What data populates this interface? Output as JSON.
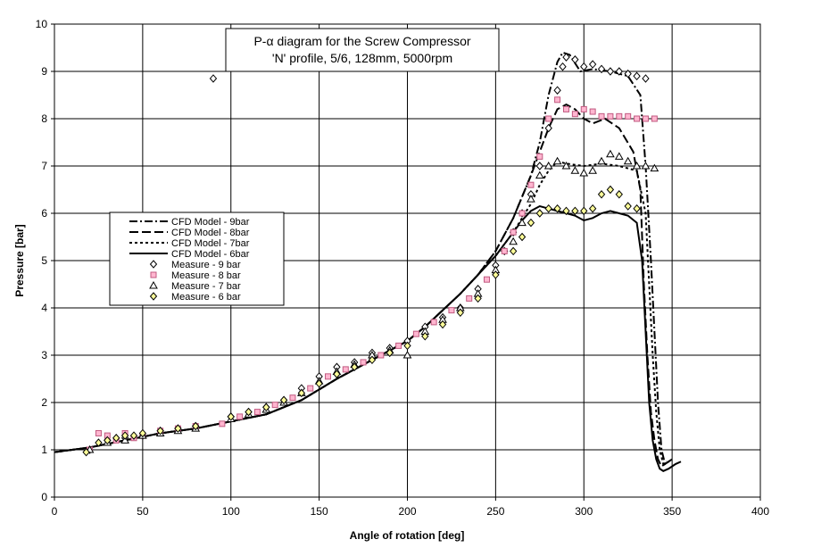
{
  "chart_data": {
    "type": "line",
    "title": [
      "P-α diagram for the Screw Compressor",
      "'N' profile, 5/6, 128mm, 5000rpm"
    ],
    "xlabel": "Angle of rotation [deg]",
    "ylabel": "Pressure [bar]",
    "xlim": [
      0,
      400
    ],
    "ylim": [
      0,
      10
    ],
    "xticks": [
      "0",
      "50",
      "100",
      "150",
      "200",
      "250",
      "300",
      "350",
      "400"
    ],
    "yticks": [
      "0",
      "1",
      "2",
      "3",
      "4",
      "5",
      "6",
      "7",
      "8",
      "9",
      "10"
    ],
    "grid": true,
    "legend_position": "middle-left",
    "series": [
      {
        "name": "CFD Model - 9bar",
        "style": "dashdot",
        "color": "#000000",
        "x": [
          0,
          10,
          20,
          40,
          60,
          80,
          100,
          120,
          140,
          160,
          180,
          200,
          210,
          220,
          230,
          240,
          250,
          260,
          270,
          275,
          280,
          285,
          288,
          292,
          298,
          305,
          315,
          325,
          332,
          335,
          338,
          340,
          342,
          344,
          346,
          348,
          350
        ],
        "y": [
          0.95,
          1.0,
          1.05,
          1.2,
          1.35,
          1.45,
          1.6,
          1.75,
          2.05,
          2.5,
          2.9,
          3.3,
          3.6,
          3.95,
          4.3,
          4.7,
          5.2,
          5.9,
          6.8,
          7.5,
          8.5,
          9.2,
          9.4,
          9.35,
          9.0,
          9.05,
          9.0,
          8.9,
          8.5,
          7.0,
          5.0,
          3.5,
          2.0,
          1.0,
          0.7,
          0.75,
          0.8
        ]
      },
      {
        "name": "CFD Model - 8bar",
        "style": "dash",
        "color": "#000000",
        "x": [
          0,
          10,
          20,
          40,
          60,
          80,
          100,
          120,
          140,
          160,
          180,
          200,
          210,
          220,
          230,
          240,
          250,
          260,
          270,
          275,
          280,
          285,
          290,
          295,
          300,
          305,
          312,
          320,
          328,
          332,
          334,
          336,
          338,
          340,
          342,
          344,
          346,
          348
        ],
        "y": [
          0.95,
          1.0,
          1.05,
          1.2,
          1.35,
          1.45,
          1.6,
          1.75,
          2.05,
          2.5,
          2.9,
          3.3,
          3.6,
          3.95,
          4.3,
          4.7,
          5.2,
          5.9,
          6.8,
          7.3,
          7.8,
          8.2,
          8.3,
          8.2,
          8.0,
          7.9,
          8.0,
          7.8,
          7.3,
          6.5,
          4.5,
          3.0,
          1.8,
          1.2,
          0.8,
          0.65,
          0.7,
          0.75
        ]
      },
      {
        "name": "CFD Model - 7bar",
        "style": "dot",
        "color": "#000000",
        "x": [
          0,
          10,
          20,
          40,
          60,
          80,
          100,
          120,
          140,
          160,
          180,
          200,
          210,
          220,
          230,
          240,
          250,
          260,
          270,
          275,
          280,
          285,
          290,
          300,
          310,
          320,
          330,
          335,
          337,
          339,
          341,
          343,
          345,
          347
        ],
        "y": [
          0.95,
          1.0,
          1.05,
          1.2,
          1.35,
          1.45,
          1.6,
          1.75,
          2.05,
          2.5,
          2.9,
          3.3,
          3.6,
          3.95,
          4.3,
          4.7,
          5.1,
          5.6,
          6.2,
          6.6,
          6.9,
          7.1,
          7.05,
          7.0,
          7.05,
          7.0,
          6.9,
          6.0,
          4.5,
          3.0,
          1.8,
          1.0,
          0.7,
          0.75
        ]
      },
      {
        "name": "CFD Model - 6bar",
        "style": "solid",
        "color": "#000000",
        "x": [
          0,
          10,
          20,
          40,
          60,
          80,
          100,
          120,
          140,
          160,
          180,
          200,
          210,
          220,
          230,
          240,
          250,
          260,
          265,
          270,
          275,
          280,
          285,
          290,
          295,
          300,
          305,
          310,
          315,
          320,
          325,
          330,
          333,
          335,
          337,
          339,
          341,
          343,
          345,
          348,
          352,
          355
        ],
        "y": [
          0.95,
          1.0,
          1.05,
          1.2,
          1.35,
          1.45,
          1.6,
          1.75,
          2.05,
          2.5,
          2.9,
          3.3,
          3.6,
          3.95,
          4.3,
          4.7,
          5.1,
          5.6,
          5.85,
          6.05,
          6.15,
          6.1,
          6.05,
          6.0,
          5.95,
          5.85,
          5.9,
          6.0,
          6.05,
          6.0,
          5.95,
          5.8,
          5.0,
          3.5,
          2.0,
          1.2,
          0.8,
          0.6,
          0.55,
          0.6,
          0.7,
          0.75
        ]
      },
      {
        "name": "Measure - 9 bar",
        "marker": "diamond",
        "color": "#000000",
        "fill": "#ffffff",
        "x": [
          20,
          30,
          40,
          50,
          60,
          70,
          80,
          90,
          100,
          110,
          120,
          130,
          140,
          150,
          160,
          170,
          180,
          190,
          200,
          210,
          220,
          230,
          240,
          250,
          255,
          260,
          265,
          270,
          275,
          280,
          285,
          288,
          290,
          295,
          300,
          305,
          310,
          315,
          320,
          325,
          330,
          335
        ],
        "y": [
          1.0,
          1.2,
          1.25,
          1.3,
          1.4,
          1.45,
          1.5,
          8.85,
          1.7,
          1.8,
          1.9,
          2.05,
          2.3,
          2.55,
          2.75,
          2.85,
          3.05,
          3.15,
          3.3,
          3.6,
          3.8,
          4.0,
          4.4,
          4.9,
          5.2,
          5.6,
          6.0,
          6.4,
          7.0,
          7.8,
          8.6,
          9.1,
          9.3,
          9.25,
          9.1,
          9.15,
          9.05,
          9.0,
          9.0,
          8.95,
          8.9,
          8.85
        ]
      },
      {
        "name": "Measure - 8 bar",
        "marker": "square",
        "color": "#c05a80",
        "fill": "#ffb6d0",
        "x": [
          20,
          25,
          30,
          35,
          40,
          45,
          50,
          60,
          70,
          80,
          95,
          105,
          115,
          125,
          135,
          145,
          155,
          165,
          175,
          185,
          195,
          205,
          215,
          225,
          235,
          245,
          255,
          260,
          265,
          270,
          275,
          280,
          285,
          290,
          295,
          300,
          305,
          310,
          315,
          320,
          325,
          330,
          335,
          340
        ],
        "y": [
          1.0,
          1.35,
          1.3,
          1.2,
          1.35,
          1.25,
          1.3,
          1.4,
          1.45,
          1.5,
          1.55,
          1.7,
          1.8,
          1.95,
          2.1,
          2.3,
          2.55,
          2.7,
          2.85,
          3.0,
          3.2,
          3.45,
          3.7,
          3.95,
          4.2,
          4.6,
          5.2,
          5.6,
          6.0,
          6.6,
          7.2,
          8.0,
          8.4,
          8.2,
          8.1,
          8.2,
          8.15,
          8.05,
          8.05,
          8.05,
          8.05,
          8.0,
          8.0,
          8.0
        ]
      },
      {
        "name": "Measure - 7 bar",
        "marker": "triangle",
        "color": "#000000",
        "fill": "#ffffff",
        "x": [
          20,
          30,
          40,
          50,
          60,
          70,
          80,
          100,
          110,
          120,
          130,
          140,
          150,
          160,
          170,
          180,
          190,
          200,
          210,
          220,
          230,
          240,
          250,
          260,
          265,
          270,
          275,
          280,
          285,
          290,
          295,
          300,
          305,
          310,
          315,
          320,
          325,
          330,
          335,
          340
        ],
        "y": [
          1.0,
          1.15,
          1.2,
          1.3,
          1.35,
          1.4,
          1.45,
          1.65,
          1.75,
          1.85,
          2.0,
          2.2,
          2.45,
          2.65,
          2.8,
          3.0,
          3.1,
          3.0,
          3.5,
          3.75,
          4.0,
          4.3,
          4.8,
          5.4,
          5.8,
          6.3,
          6.8,
          7.0,
          7.1,
          7.0,
          6.9,
          6.85,
          6.9,
          7.1,
          7.25,
          7.2,
          7.1,
          7.0,
          7.0,
          6.95
        ]
      },
      {
        "name": "Measure - 6 bar",
        "marker": "diamond",
        "color": "#000000",
        "fill": "#ffff99",
        "x": [
          18,
          25,
          30,
          35,
          40,
          45,
          50,
          60,
          70,
          80,
          100,
          110,
          120,
          130,
          140,
          150,
          160,
          170,
          180,
          190,
          200,
          210,
          220,
          230,
          240,
          250,
          260,
          265,
          270,
          275,
          280,
          285,
          290,
          295,
          300,
          305,
          310,
          315,
          320,
          325,
          330
        ],
        "y": [
          0.95,
          1.15,
          1.2,
          1.25,
          1.3,
          1.3,
          1.35,
          1.4,
          1.45,
          1.5,
          1.7,
          1.8,
          1.9,
          2.05,
          2.2,
          2.4,
          2.6,
          2.75,
          2.9,
          3.05,
          3.2,
          3.4,
          3.65,
          3.9,
          4.2,
          4.7,
          5.2,
          5.5,
          5.8,
          6.0,
          6.1,
          6.1,
          6.05,
          6.05,
          6.05,
          6.1,
          6.4,
          6.5,
          6.4,
          6.15,
          6.1
        ]
      }
    ]
  }
}
